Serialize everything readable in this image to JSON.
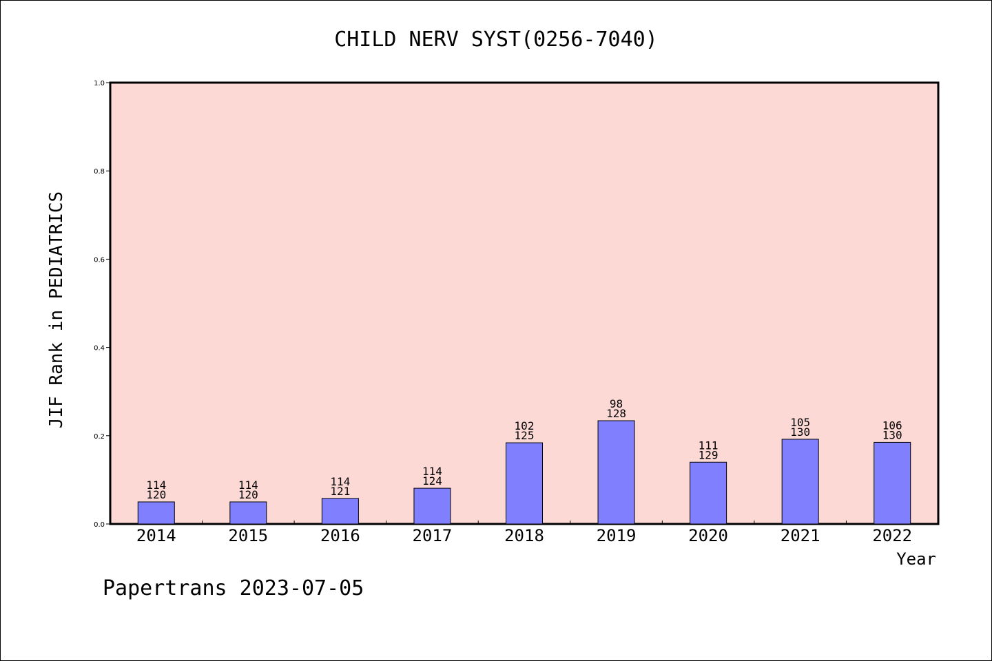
{
  "chart_data": {
    "type": "bar",
    "title": "CHILD NERV SYST(0256-7040)",
    "xlabel": "Year",
    "ylabel": "JIF Rank in PEDIATRICS",
    "ylim": [
      0,
      1.0
    ],
    "yticks": [
      "0.0",
      "0.2",
      "0.4",
      "0.6",
      "0.8",
      "1.0"
    ],
    "categories": [
      "2014",
      "2015",
      "2016",
      "2017",
      "2018",
      "2019",
      "2020",
      "2021",
      "2022"
    ],
    "values": [
      0.05,
      0.05,
      0.058,
      0.081,
      0.184,
      0.234,
      0.14,
      0.192,
      0.185
    ],
    "rank": [
      "114",
      "114",
      "114",
      "114",
      "102",
      "98",
      "111",
      "105",
      "106"
    ],
    "total": [
      "120",
      "120",
      "121",
      "124",
      "125",
      "128",
      "129",
      "130",
      "130"
    ],
    "colors": {
      "plot_bg": "#fdd9d6",
      "bar": "#8080ff"
    },
    "grid": false,
    "legend": "none"
  },
  "footer": "Papertrans 2023-07-05"
}
